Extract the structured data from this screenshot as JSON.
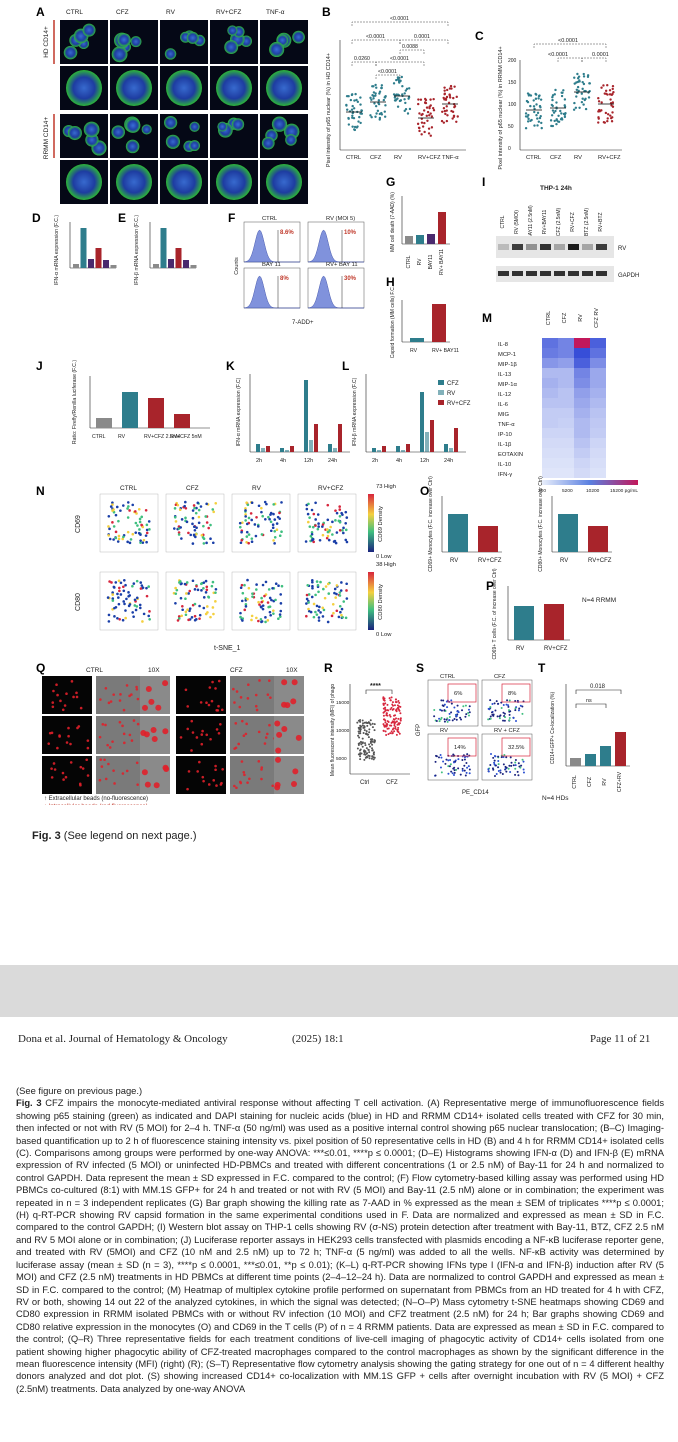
{
  "figure": {
    "panels": {
      "A": {
        "letter": "A",
        "columns": [
          "CTRL",
          "CFZ",
          "RV",
          "RV+CFZ",
          "TNF-α"
        ],
        "row_labels": [
          "HD CD14+",
          "RRMM CD14+"
        ]
      },
      "B": {
        "letter": "B",
        "ylabel": "Pixel intensity of p65 nuclear (%) in HD CD14+",
        "categories": [
          "CTRL",
          "CFZ",
          "RV",
          "RV+CFZ",
          "TNF-α"
        ],
        "pvalues": [
          "<0.0001",
          "<0.0001",
          "0.0001",
          "0.0260",
          "<0.0001",
          "0.0088",
          "<0.0001"
        ]
      },
      "C": {
        "letter": "C",
        "ylabel": "Pixel intensity of p65 nuclear (%) in RRMM CD14+",
        "categories": [
          "CTRL",
          "CFZ",
          "RV",
          "RV+CFZ"
        ],
        "pvalues": [
          "<0.0001",
          "<0.0001",
          "0.0001"
        ],
        "ticks": [
          "0",
          "50",
          "100",
          "150",
          "200"
        ]
      },
      "D": {
        "letter": "D",
        "ylabel": "IFN-α mRNA expression (F.C.)"
      },
      "E": {
        "letter": "E",
        "ylabel": "IFN-β mRNA expression (F.C.)"
      },
      "F": {
        "letter": "F",
        "titles": [
          "CTRL",
          "RV (MOI 5)",
          "BAY 11",
          "RV+ BAY 11"
        ],
        "percents": [
          "8.6%",
          "10%",
          "8%",
          "30%"
        ],
        "xlabel": "7-ADD+",
        "ylabel": "Counts"
      },
      "G": {
        "letter": "G",
        "ylabel": "MM cell death (7-AAD) (%)",
        "categories": [
          "CTRL",
          "RV",
          "BAY11",
          "RV+ BAY11"
        ]
      },
      "H": {
        "letter": "H",
        "ylabel": "Capsid formation (MM cells) F.C.",
        "categories": [
          "RV",
          "RV+ BAY11"
        ]
      },
      "I": {
        "letter": "I",
        "title": "THP-1 24h",
        "lanes": [
          "CTRL",
          "RV (5MOI)",
          "BAY11 (2.5nM)",
          "RV+BAY11",
          "CFZ (2.5nM)",
          "RV+CFZ",
          "BTZ (2.5nM)",
          "RV+BTZ"
        ],
        "bands": [
          "RV",
          "GAPDH"
        ]
      },
      "J": {
        "letter": "J",
        "ylabel": "Ratio: Firefly/Renilla luciferase (F.C.)",
        "categories": [
          "CTRL",
          "RV",
          "RV+CFZ 2.5nM",
          "RV+CFZ 5nM"
        ]
      },
      "K": {
        "letter": "K",
        "ylabel": "IFN-α mRNA expression (F.C)",
        "times": [
          "2h",
          "4h",
          "12h",
          "24h"
        ]
      },
      "L": {
        "letter": "L",
        "ylabel": "IFN-β mRNA expression (F.C)",
        "times": [
          "2h",
          "4h",
          "12h",
          "24h"
        ],
        "legend": [
          "CFZ",
          "RV",
          "RV+CFZ"
        ]
      },
      "M": {
        "letter": "M",
        "columns": [
          "CTRL",
          "CFZ",
          "RV",
          "CFZ RV"
        ],
        "rows": [
          "IL-8",
          "MCP-1",
          "MIP-1β",
          "IL-13",
          "MIP-1α",
          "IL-12",
          "IL-6",
          "MIG",
          "TNF-α",
          "IP-10",
          "IL-1β",
          "EOTAXIN",
          "IL-10",
          "IFN-γ"
        ],
        "scale": [
          "200",
          "5200",
          "10200",
          "15200 pg/mL"
        ]
      },
      "N": {
        "letter": "N",
        "columns": [
          "CTRL",
          "CFZ",
          "RV",
          "RV+CFZ"
        ],
        "rows": [
          "CD69",
          "CD80"
        ],
        "xlabel": "t-SNE_1",
        "cd69_scale": [
          "73 High",
          "CD69 Density",
          "0 Low"
        ],
        "cd80_scale": [
          "38 High",
          "CD80 Density",
          "0 Low"
        ]
      },
      "O": {
        "letter": "O",
        "charts": [
          {
            "ylabel": "CD69+ Monocytes (F.C. increase over Ctrl)",
            "categories": [
              "RV",
              "RV+CFZ"
            ]
          },
          {
            "ylabel": "CD80+ Monocytes (F.C. increase over Ctrl)",
            "categories": [
              "RV",
              "RV+CFZ"
            ]
          }
        ]
      },
      "P": {
        "letter": "P",
        "ylabel": "CD69+ T cells (F.C. of increase over Ctrl)",
        "categories": [
          "RV",
          "RV+CFZ"
        ],
        "note": "N=4 RRMM"
      },
      "Q": {
        "letter": "Q",
        "labels": [
          "CTRL",
          "10X",
          "CFZ",
          "10X"
        ],
        "legend": [
          "Extracellular beads (no-fluorescence)",
          "Intracellular beads (red fluorescence)"
        ]
      },
      "R": {
        "letter": "R",
        "ylabel": "Mean fluorescent intensity (MFI) of phago",
        "categories": [
          "Ctrl",
          "CFZ"
        ],
        "sig": "****",
        "ticks": [
          "5000",
          "10000",
          "15000"
        ]
      },
      "S": {
        "letter": "S",
        "titles": [
          "CTRL",
          "CFZ",
          "RV",
          "RV + CFZ"
        ],
        "percents": [
          "6%",
          "8%",
          "14%",
          "32.5%"
        ],
        "xlabel": "PE_CD14",
        "ylabel": "GFP"
      },
      "T": {
        "letter": "T",
        "ylabel": "CD14+GFP+ Co-localization (%)",
        "categories": [
          "CTRL",
          "CFZ",
          "RV",
          "CFZ+RV"
        ],
        "pvalue": "0.018",
        "ns": "ns",
        "note": "N=4 HDs"
      }
    }
  },
  "caption_short": {
    "bold": "Fig. 3",
    "rest": "(See legend on next page.)"
  },
  "header": {
    "journal": "Dona et al. Journal of Hematology & Oncology",
    "year": "(2025) 18:1",
    "page": "Page 11 of 21"
  },
  "legend": {
    "see_prev": "(See figure on previous page.)",
    "fig_label": "Fig. 3",
    "body": "CFZ impairs the monocyte-mediated antiviral response without affecting T cell activation. (A) Representative merge of immunofluorescence fields showing p65 staining (green) as indicated and DAPI staining for nucleic acids (blue) in HD and RRMM CD14+ isolated cells treated with CFZ for 30 min, then infected or not with RV (5 MOI) for 2–4 h. TNF-α (50 ng/ml) was used as a positive internal control showing p65 nuclear translocation; (B–C) Imaging-based quantification up to 2 h of fluorescence staining intensity vs. pixel position of 50 representative cells in HD (B) and 4 h for RRMM CD14+ isolated cells (C). Comparisons among groups were performed by one-way ANOVA: ***≤0.01, ****p ≤ 0.0001; (D–E) Histograms showing IFN-α (D) and IFN-β (E) mRNA expression of RV infected (5 MOI) or uninfected HD-PBMCs and treated with different concentrations (1 or 2.5 nM) of Bay-11 for 24 h and normalized to control GAPDH. Data represent the mean ± SD expressed in F.C. compared to the control; (F) Flow cytometry-based killing assay was performed using HD PBMCs co-cultured (8:1) with MM.1S GFP+ for 24 h and treated or not with RV (5 MOI) and Bay-11 (2.5 nM) alone or in combination; the experiment was repeated in n = 3 independent replicates (G) Bar graph showing the killing rate as 7-AAD in % expressed as the mean ± SEM of triplicates ****p ≤ 0.0001; (H) q-RT-PCR showing RV capsid formation in the same experimental conditions used in F. Data are normalized and expressed as mean ± SD in F.C. compared to the control GAPDH; (I) Western blot assay on THP-1 cells showing RV (σ-NS) protein detection after treatment with Bay-11, BTZ, CFZ 2.5 nM and RV 5 MOI alone or in combination; (J) Luciferase reporter assays in HEK293 cells transfected with plasmids encoding a NF-κB luciferase reporter gene, and treated with RV (5MOI) and CFZ (10 nM and 2.5 nM) up to 72 h; TNF-α (5 ng/ml) was added to all the wells. NF-κB activity was determined by luciferase assay (mean ± SD (n = 3), ****p ≤ 0.0001, ***≤0.01, **p ≤ 0.01); (K–L) q-RT-PCR showing IFNs type I (IFN-α and IFN-β) induction after RV (5 MOI) and CFZ (2.5 nM) treatments in HD PBMCs at different time points (2–4–12–24 h). Data are normalized to control GAPDH and expressed as mean ± SD in F.C. compared to the control; (M) Heatmap of multiplex cytokine profile performed on supernatant from PBMCs from an HD treated for 4 h with CFZ, RV or both, showing 14 out 22 of the analyzed cytokines, in which the signal was detected; (N–O–P) Mass cytometry t-SNE heatmaps showing CD69 and CD80 expression in RRMM isolated PBMCs with or without RV infection (10 MOI) and CFZ treatment (2.5 nM) for 24 h; Bar graphs showing CD69 and CD80 relative expression in the monocytes (O) and CD69 in the T cells (P) of n = 4 RRMM patients. Data are expressed as mean ± SD in F.C. compared to the control; (Q–R) Three representative fields for each treatment conditions of live-cell imaging of phagocytic activity of CD14+ cells isolated from one patient showing higher phagocytic ability of CFZ-treated macrophages compared to the control macrophages as shown by the significant difference in the mean fluorescence intensity (MFI) (right) (R); (S–T) Representative flow cytometry analysis showing the gating strategy for one out of n = 4 different healthy donors analyzed and dot plot. (S) showing increased CD14+ co-localization with MM.1S GFP + cells after overnight incubation with RV (5 MOI) + CFZ (2.5nM) treatments. Data analyzed by one-way ANOVA"
  },
  "colors": {
    "teal": "#2e7d8c",
    "darkred": "#a8242b",
    "purple": "#4a2a6e",
    "gray": "#8a8a8a",
    "band": "#dadada"
  }
}
